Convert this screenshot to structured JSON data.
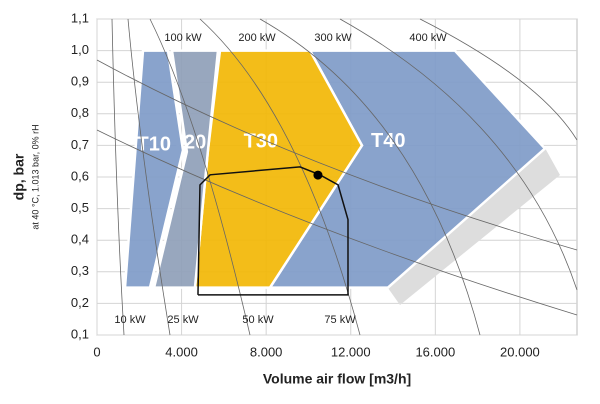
{
  "chart_data": {
    "type": "area",
    "x_label": "Volume air flow [m3/h]",
    "y_label": "dp, bar",
    "y_sublabel": "at 40 °C, 1.013 bar, 0% rH",
    "xlim": [
      0,
      22700
    ],
    "ylim": [
      0.1,
      1.1
    ],
    "xticks": [
      0,
      {
        "value": 4000,
        "label": "4.000"
      },
      {
        "value": 8000,
        "label": "8.000"
      },
      {
        "value": 12000,
        "label": "12.000"
      },
      {
        "value": 16000,
        "label": "16.000"
      },
      {
        "value": 20000,
        "label": "20.000"
      }
    ],
    "yticks": [
      {
        "value": 0.1,
        "label": "0,1"
      },
      {
        "value": 0.2,
        "label": "0,2"
      },
      {
        "value": 0.3,
        "label": "0,3"
      },
      {
        "value": 0.4,
        "label": "0,4"
      },
      {
        "value": 0.5,
        "label": "0,5"
      },
      {
        "value": 0.6,
        "label": "0,6"
      },
      {
        "value": 0.7,
        "label": "0,7"
      },
      {
        "value": 0.8,
        "label": "0,8"
      },
      {
        "value": 0.9,
        "label": "0,9"
      },
      {
        "value": 1.0,
        "label": "1,0"
      },
      {
        "value": 1.1,
        "label": "1,1"
      }
    ],
    "grid": true,
    "series": [
      {
        "name": "T40",
        "type": "polygon",
        "color": "#7f9bc8",
        "x": [
          10071,
          16927,
          21182,
          13759,
          8180,
          12530
        ],
        "values": [
          1.0,
          1.0,
          0.69,
          0.25,
          0.25,
          0.7
        ]
      },
      {
        "name": "T30",
        "type": "polygon",
        "color": "#f2b705",
        "x": [
          5816,
          10071,
          12530,
          8180,
          4633,
          5248
        ],
        "values": [
          1.0,
          1.0,
          0.7,
          0.25,
          0.25,
          0.685
        ]
      },
      {
        "name": "T20",
        "type": "polygon",
        "color": "#8fa0b8",
        "x": [
          3546,
          5721,
          5248,
          4633,
          2700,
          4250
        ],
        "values": [
          1.0,
          1.0,
          0.685,
          0.25,
          0.25,
          0.68
        ]
      },
      {
        "name": "T10",
        "type": "polygon",
        "color": "#7f9bc8",
        "x": [
          2175,
          3357,
          4066,
          2506,
          1324
        ],
        "values": [
          1.0,
          1.0,
          0.685,
          0.25,
          0.25
        ]
      },
      {
        "type": "line",
        "color": "#111111",
        "x": [
          4775,
          4870,
          5350,
          9600,
          10540,
          11400,
          11870,
          11870,
          4775
        ],
        "values": [
          0.227,
          0.575,
          0.607,
          0.632,
          0.607,
          0.575,
          0.465,
          0.227,
          0.227
        ]
      },
      {
        "type": "scatter",
        "color": "#000000",
        "x": [
          10449
        ],
        "values": [
          0.606
        ]
      }
    ],
    "annotations": [
      "100 kW",
      "200 kW",
      "300 kW",
      "400 kW",
      "10 kW",
      "25 kW",
      "50 kW",
      "75 kW"
    ]
  }
}
